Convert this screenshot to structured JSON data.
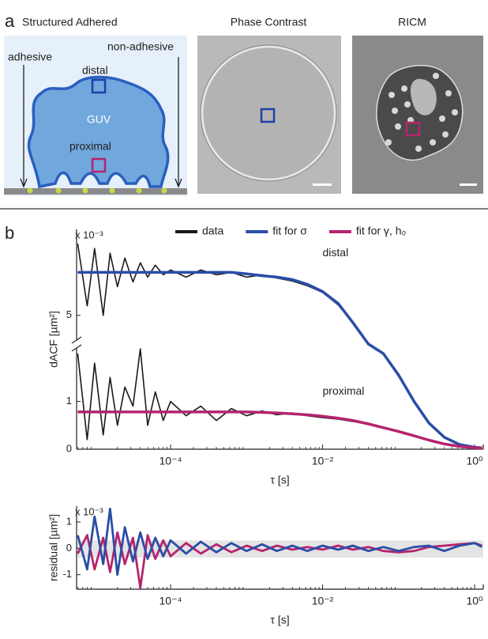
{
  "panel_a": {
    "label": "a",
    "titles": [
      "Structured Adhered",
      "Phase Contrast",
      "RICM"
    ],
    "diagram": {
      "left_label": "adhesive",
      "right_label": "non-adhesive",
      "top_label": "distal",
      "center_label": "GUV",
      "bottom_label": "proximal"
    }
  },
  "panel_b": {
    "label": "b"
  },
  "chart_data": [
    {
      "type": "line",
      "xscale": "log",
      "xlabel": "τ [s]",
      "ylabel": "dACF [µm²]",
      "y_multiplier": "x 10⁻³",
      "x": [
        6e-06,
        8e-06,
        1e-05,
        1.3e-05,
        1.6e-05,
        2e-05,
        2.5e-05,
        3.2e-05,
        4e-05,
        5e-05,
        6.3e-05,
        8e-05,
        0.0001,
        0.00016,
        0.00025,
        0.0004,
        0.00063,
        0.001,
        0.0016,
        0.0025,
        0.004,
        0.0063,
        0.01,
        0.016,
        0.025,
        0.04,
        0.063,
        0.1,
        0.16,
        0.25,
        0.4,
        0.63,
        1,
        1.25
      ],
      "xlim": [
        5.8e-06,
        1.3
      ],
      "xticks": [
        {
          "value": 0.0001,
          "label": "10⁻⁴"
        },
        {
          "value": 0.01,
          "label": "10⁻²"
        },
        {
          "value": 1,
          "label": "10⁰"
        }
      ],
      "ylim": [
        0,
        6.8
      ],
      "ybreak": [
        2.2,
        4.4
      ],
      "yticks": [
        0,
        1,
        5
      ],
      "grid": false,
      "series": [
        {
          "name": "data",
          "color": "#1a1a1a",
          "width": 1.6,
          "values": [
            6.5,
            5.2,
            6.4,
            5.0,
            6.3,
            5.6,
            6.2,
            5.7,
            6.1,
            5.8,
            6.05,
            5.85,
            5.95,
            5.8,
            5.95,
            5.85,
            5.9,
            5.8,
            5.85,
            5.78,
            5.72,
            5.62,
            5.48,
            5.22,
            4.85,
            3.0,
            2.0,
            1.55,
            1.0,
            0.55,
            0.25,
            0.1,
            0.04,
            0.03
          ]
        },
        {
          "color": "#1a1a1a",
          "width": 1.6,
          "values": [
            2.0,
            0.2,
            1.8,
            0.3,
            1.5,
            0.5,
            1.3,
            0.9,
            2.1,
            0.5,
            1.2,
            0.6,
            1.0,
            0.7,
            0.9,
            0.6,
            0.85,
            0.7,
            0.8,
            0.72,
            0.76,
            0.7,
            0.66,
            0.63,
            0.58,
            0.52,
            0.44,
            0.36,
            0.28,
            0.19,
            0.11,
            0.06,
            0.03,
            0.02
          ]
        },
        {
          "name": "fit for σ",
          "color": "#2a4ea6",
          "width": 3.5,
          "values": [
            5.9,
            5.9,
            5.9,
            5.9,
            5.9,
            5.9,
            5.9,
            5.9,
            5.9,
            5.9,
            5.9,
            5.9,
            5.9,
            5.9,
            5.9,
            5.9,
            5.9,
            5.87,
            5.83,
            5.8,
            5.75,
            5.65,
            5.5,
            5.25,
            4.85,
            3.0,
            2.0,
            1.55,
            1.0,
            0.55,
            0.25,
            0.1,
            0.04,
            0.03
          ]
        },
        {
          "name": "fit for γ, h₀",
          "color": "#b5246e",
          "width": 3.5,
          "values": [
            0.78,
            0.78,
            0.78,
            0.78,
            0.78,
            0.78,
            0.78,
            0.78,
            0.78,
            0.78,
            0.78,
            0.78,
            0.78,
            0.78,
            0.78,
            0.78,
            0.78,
            0.78,
            0.77,
            0.76,
            0.74,
            0.72,
            0.69,
            0.65,
            0.6,
            0.53,
            0.45,
            0.37,
            0.28,
            0.19,
            0.11,
            0.06,
            0.03,
            0.02
          ]
        }
      ],
      "annotations": [
        {
          "text": "distal",
          "x": 0.01,
          "y": 6.3
        },
        {
          "text": "proximal",
          "x": 0.01,
          "y": 1.2
        }
      ]
    },
    {
      "type": "line",
      "xscale": "log",
      "xlabel": "τ [s]",
      "ylabel": "residual [µm²]",
      "y_multiplier": "x 10⁻³",
      "x": [
        6e-06,
        8e-06,
        1e-05,
        1.3e-05,
        1.6e-05,
        2e-05,
        2.5e-05,
        3.2e-05,
        4e-05,
        5e-05,
        6.3e-05,
        8e-05,
        0.0001,
        0.00016,
        0.00025,
        0.0004,
        0.00063,
        0.001,
        0.0016,
        0.0025,
        0.004,
        0.0063,
        0.01,
        0.016,
        0.025,
        0.04,
        0.063,
        0.1,
        0.16,
        0.25,
        0.4,
        0.63,
        1,
        1.25
      ],
      "xlim": [
        5.8e-06,
        1.3
      ],
      "xticks": [
        {
          "value": 0.0001,
          "label": "10⁻⁴"
        },
        {
          "value": 0.01,
          "label": "10⁻²"
        },
        {
          "value": 1,
          "label": "10⁰"
        }
      ],
      "ylim": [
        -1.55,
        1.6
      ],
      "yticks": [
        -1,
        0,
        1
      ],
      "band": [
        -0.35,
        0.3
      ],
      "grid": false,
      "series": [
        {
          "color": "#b5246e",
          "width": 2.8,
          "values": [
            -0.2,
            0.5,
            -0.8,
            0.4,
            -0.9,
            0.6,
            -0.6,
            0.4,
            -1.5,
            0.5,
            -0.4,
            0.3,
            -0.3,
            0.2,
            -0.2,
            0.15,
            -0.15,
            0.1,
            -0.1,
            0.1,
            -0.05,
            0.05,
            -0.05,
            0.1,
            -0.05,
            0.05,
            -0.1,
            -0.15,
            -0.1,
            0.05,
            0.1,
            0.15,
            0.2,
            0.1
          ]
        },
        {
          "color": "#2a4ea6",
          "width": 2.8,
          "values": [
            0.5,
            -0.8,
            1.2,
            -0.6,
            1.5,
            -1.0,
            0.8,
            -0.5,
            0.6,
            -0.4,
            0.4,
            -0.3,
            0.3,
            -0.2,
            0.25,
            -0.15,
            0.2,
            -0.1,
            0.15,
            -0.1,
            0.1,
            -0.1,
            0.1,
            -0.05,
            0.1,
            -0.1,
            0.05,
            -0.1,
            0.05,
            0.1,
            -0.1,
            0.1,
            0.2,
            0.05
          ]
        }
      ]
    }
  ]
}
